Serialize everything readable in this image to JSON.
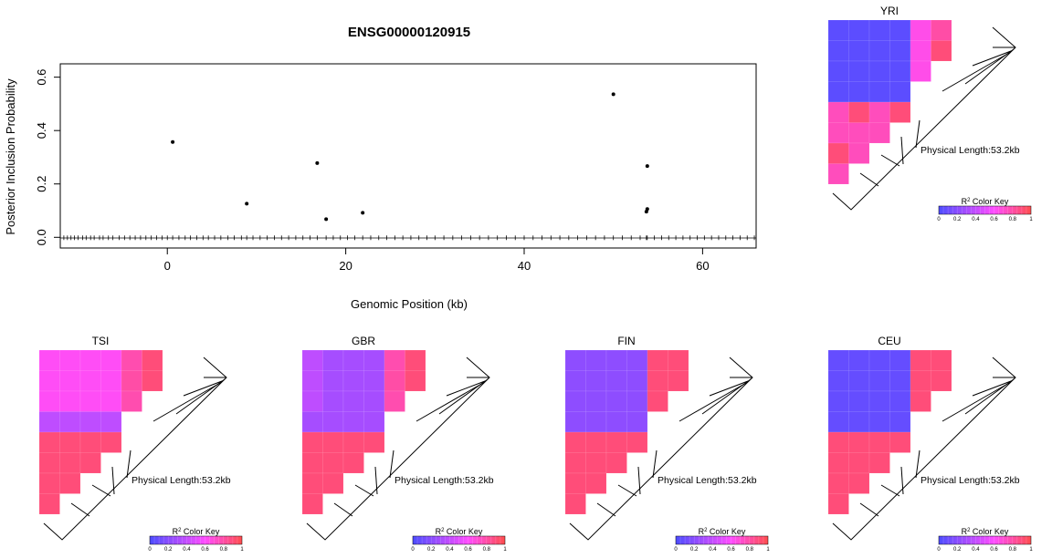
{
  "chart_data": [
    {
      "type": "scatter",
      "title": "ENSG00000120915",
      "xlabel": "Genomic Position (kb)",
      "ylabel": "Posterior Inclusion Probability",
      "xlim": [
        -12,
        66
      ],
      "ylim": [
        -0.04,
        0.65
      ],
      "x_ticks": [
        0,
        20,
        40,
        60
      ],
      "y_ticks": [
        0.0,
        0.2,
        0.4,
        0.6
      ],
      "x_tick_labels": [
        "0",
        "20",
        "40",
        "60"
      ],
      "y_tick_labels": [
        "0.0",
        "0.2",
        "0.4",
        "0.6"
      ],
      "points": [
        {
          "x": 0.6,
          "y": 0.357
        },
        {
          "x": 8.9,
          "y": 0.126
        },
        {
          "x": 16.8,
          "y": 0.278
        },
        {
          "x": 17.8,
          "y": 0.068
        },
        {
          "x": 21.9,
          "y": 0.092
        },
        {
          "x": 50.0,
          "y": 0.536
        },
        {
          "x": 53.8,
          "y": 0.267
        },
        {
          "x": 53.8,
          "y": 0.106
        },
        {
          "x": 53.7,
          "y": 0.096
        }
      ],
      "rug_positions": [
        -12.0,
        -11.6,
        -11.2,
        -10.8,
        -10.4,
        -10.0,
        -9.5,
        -9.1,
        -8.6,
        -8.2,
        -7.6,
        -7.2,
        -6.6,
        -6.1,
        -5.4,
        -4.8,
        -4.2,
        -3.6,
        -3.0,
        -2.4,
        -1.8,
        -1.2,
        -0.6,
        0.0,
        0.6,
        1.3,
        2.0,
        2.6,
        3.3,
        4.0,
        4.6,
        5.3,
        6.0,
        6.8,
        7.5,
        8.3,
        8.9,
        9.6,
        10.4,
        11.2,
        12.0,
        12.8,
        13.6,
        14.4,
        15.2,
        16.0,
        16.8,
        17.8,
        18.6,
        19.4,
        20.2,
        21.0,
        21.9,
        22.8,
        23.7,
        24.6,
        25.5,
        26.4,
        27.3,
        28.2,
        29.1,
        30.0,
        31.0,
        32.0,
        33.0,
        34.0,
        35.0,
        36.0,
        37.0,
        38.0,
        39.0,
        40.0,
        41.0,
        42.0,
        43.0,
        44.0,
        45.0,
        46.0,
        47.0,
        48.0,
        49.0,
        50.0,
        51.0,
        52.0,
        53.0,
        53.7,
        53.8,
        54.6,
        55.4,
        56.2,
        57.0,
        57.8,
        58.6,
        59.4,
        60.2,
        61.0,
        61.8,
        62.6,
        63.4,
        64.2,
        65.0,
        65.8
      ]
    },
    {
      "type": "heatmap",
      "title": "YRI",
      "annotation": "Physical Length:53.2kb",
      "key_title": "R",
      "key_sup": "2",
      "key_title_rest": " Color Key",
      "key_ticks": [
        "0",
        "0.2",
        "0.4",
        "0.6",
        "0.8",
        "1"
      ],
      "key_colors": [
        "#4d4dff",
        "#ff4d8a"
      ],
      "matrix": [
        [
          0.05,
          0.05,
          0.05,
          0.05,
          0.65,
          0.8
        ],
        [
          0.05,
          0.05,
          0.05,
          0.05,
          0.65,
          0.9
        ],
        [
          0.05,
          0.05,
          0.05,
          0.05,
          0.65
        ],
        [
          0.05,
          0.05,
          0.05,
          0.05
        ],
        [
          0.75,
          0.9,
          0.75,
          0.9
        ],
        [
          0.75,
          0.75,
          0.75
        ],
        [
          0.9,
          0.75
        ],
        [
          0.75
        ]
      ]
    },
    {
      "type": "heatmap",
      "title": "TSI",
      "annotation": "Physical Length:53.2kb",
      "key_title": "R",
      "key_sup": "2",
      "key_title_rest": " Color Key",
      "key_ticks": [
        "0",
        "0.2",
        "0.4",
        "0.6",
        "0.8",
        "1"
      ],
      "key_colors": [
        "#4d4dff",
        "#ff4d8a"
      ],
      "matrix": [
        [
          0.62,
          0.62,
          0.62,
          0.62,
          0.78,
          0.9
        ],
        [
          0.62,
          0.62,
          0.62,
          0.62,
          0.8,
          0.9
        ],
        [
          0.62,
          0.62,
          0.62,
          0.62,
          0.78
        ],
        [
          0.38,
          0.38,
          0.38,
          0.38
        ],
        [
          0.9,
          0.9,
          0.9,
          0.9
        ],
        [
          0.9,
          0.9,
          0.9
        ],
        [
          0.9,
          0.9
        ],
        [
          0.9
        ]
      ]
    },
    {
      "type": "heatmap",
      "title": "GBR",
      "annotation": "Physical Length:53.2kb",
      "key_title": "R",
      "key_sup": "2",
      "key_title_rest": " Color Key",
      "key_ticks": [
        "0",
        "0.2",
        "0.4",
        "0.6",
        "0.8",
        "1"
      ],
      "key_colors": [
        "#4d4dff",
        "#ff4d8a"
      ],
      "matrix": [
        [
          0.38,
          0.3,
          0.3,
          0.3,
          0.78,
          0.9
        ],
        [
          0.38,
          0.3,
          0.3,
          0.3,
          0.8,
          0.9
        ],
        [
          0.38,
          0.3,
          0.3,
          0.3,
          0.78
        ],
        [
          0.3,
          0.3,
          0.3,
          0.3
        ],
        [
          0.9,
          0.9,
          0.9,
          0.9
        ],
        [
          0.9,
          0.9,
          0.9
        ],
        [
          0.9,
          0.9
        ],
        [
          0.9
        ]
      ]
    },
    {
      "type": "heatmap",
      "title": "FIN",
      "annotation": "Physical Length:53.2kb",
      "key_title": "R",
      "key_sup": "2",
      "key_title_rest": " Color Key",
      "key_ticks": [
        "0",
        "0.2",
        "0.4",
        "0.6",
        "0.8",
        "1"
      ],
      "key_colors": [
        "#4d4dff",
        "#ff4d8a"
      ],
      "matrix": [
        [
          0.22,
          0.22,
          0.22,
          0.22,
          0.9,
          0.9
        ],
        [
          0.22,
          0.22,
          0.22,
          0.22,
          0.9,
          0.9
        ],
        [
          0.22,
          0.22,
          0.22,
          0.22,
          0.9
        ],
        [
          0.22,
          0.22,
          0.22,
          0.22
        ],
        [
          0.9,
          0.9,
          0.9,
          0.9
        ],
        [
          0.9,
          0.9,
          0.9
        ],
        [
          0.9,
          0.9
        ],
        [
          0.9
        ]
      ]
    },
    {
      "type": "heatmap",
      "title": "CEU",
      "annotation": "Physical Length:53.2kb",
      "key_title": "R",
      "key_sup": "2",
      "key_title_rest": " Color Key",
      "key_ticks": [
        "0",
        "0.2",
        "0.4",
        "0.6",
        "0.8",
        "1"
      ],
      "key_colors": [
        "#4d4dff",
        "#ff4d8a"
      ],
      "matrix": [
        [
          0.08,
          0.08,
          0.08,
          0.08,
          0.9,
          0.9
        ],
        [
          0.08,
          0.08,
          0.08,
          0.08,
          0.9,
          0.9
        ],
        [
          0.08,
          0.08,
          0.08,
          0.08,
          0.9
        ],
        [
          0.08,
          0.08,
          0.08,
          0.08
        ],
        [
          0.9,
          0.9,
          0.9,
          0.9
        ],
        [
          0.9,
          0.9,
          0.9
        ],
        [
          0.9,
          0.9
        ],
        [
          0.9
        ]
      ]
    }
  ]
}
